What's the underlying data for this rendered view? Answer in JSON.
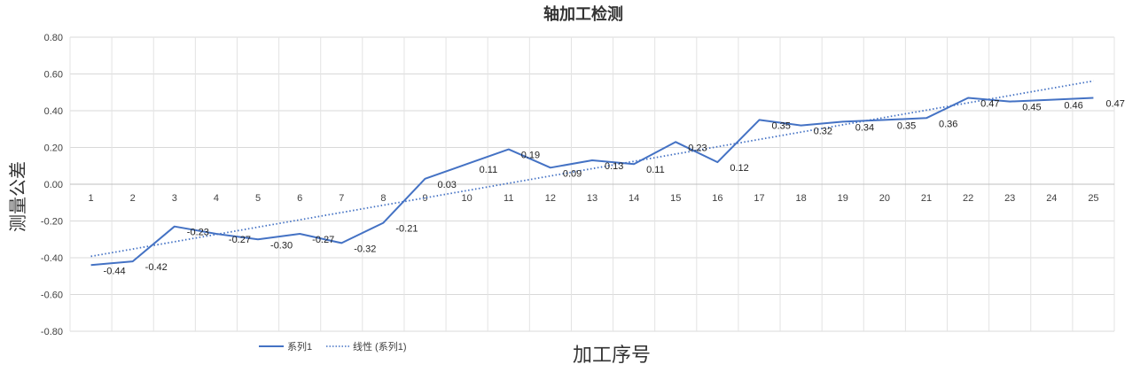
{
  "chart_data": {
    "type": "line",
    "title": "轴加工检测",
    "xlabel": "加工序号",
    "ylabel": "测量公差",
    "x": [
      1,
      2,
      3,
      4,
      5,
      6,
      7,
      8,
      9,
      10,
      11,
      12,
      13,
      14,
      15,
      16,
      17,
      18,
      19,
      20,
      21,
      22,
      23,
      24,
      25
    ],
    "categories": [
      "1",
      "2",
      "3",
      "4",
      "5",
      "6",
      "7",
      "8",
      "9",
      "10",
      "11",
      "12",
      "13",
      "14",
      "15",
      "16",
      "17",
      "18",
      "19",
      "20",
      "21",
      "22",
      "23",
      "24",
      "25"
    ],
    "series": [
      {
        "name": "系列1",
        "values": [
          -0.44,
          -0.42,
          -0.23,
          -0.27,
          -0.3,
          -0.27,
          -0.32,
          -0.21,
          0.03,
          0.11,
          0.19,
          0.09,
          0.13,
          0.11,
          0.23,
          0.12,
          0.35,
          0.32,
          0.34,
          0.35,
          0.36,
          0.47,
          0.45,
          0.46,
          0.47
        ],
        "data_labels": [
          "-0.44",
          "-0.42",
          "-0.23",
          "-0.27",
          "-0.30",
          "-0.27",
          "-0.32",
          "-0.21",
          "0.03",
          "0.11",
          "0.19",
          "0.09",
          "0.13",
          "0.11",
          "0.23",
          "0.12",
          "0.35",
          "0.32",
          "0.34",
          "0.35",
          "0.36",
          "0.47",
          "0.45",
          "0.46",
          "0.47"
        ],
        "color": "#4472C4"
      }
    ],
    "trendline": {
      "name": "线性 (系列1)",
      "type": "linear",
      "of_series": "系列1",
      "color": "#4472C4",
      "style": "dotted"
    },
    "ylim": [
      -0.8,
      0.8
    ],
    "yticks": [
      -0.8,
      -0.6,
      -0.4,
      -0.2,
      0.0,
      0.2,
      0.4,
      0.6,
      0.8
    ],
    "ytick_labels": [
      "-0.80",
      "-0.60",
      "-0.40",
      "-0.20",
      "0.00",
      "0.20",
      "0.40",
      "0.60",
      "0.80"
    ],
    "grid": true,
    "legend_position": "bottom-left"
  }
}
